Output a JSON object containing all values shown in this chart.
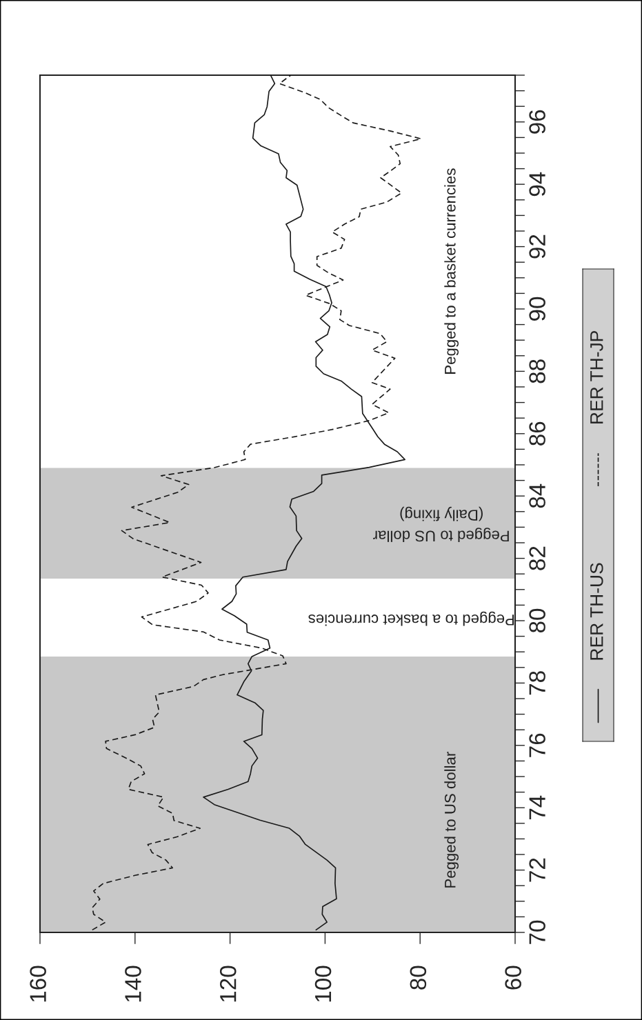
{
  "chart_data": {
    "type": "line",
    "orientation": "horizontal",
    "legend": "right",
    "series": [
      {
        "name": "RER TH-US",
        "color": "#1a1a1a",
        "line_style": "solid",
        "x": [
          70.08,
          70.33,
          70.58,
          70.83,
          71.08,
          71.57,
          72.07,
          72.32,
          72.83,
          73.09,
          73.34,
          73.6,
          74.1,
          74.34,
          74.59,
          74.84,
          75.09,
          75.34,
          75.59,
          75.9,
          76.13,
          76.34,
          76.84,
          77.12,
          77.36,
          77.62,
          78.04,
          78.39,
          78.62,
          78.85,
          79.12,
          79.38,
          79.63,
          79.89,
          80.16,
          80.37,
          80.62,
          80.86,
          81.12,
          81.4,
          81.64,
          81.9,
          82.39,
          82.64,
          82.89,
          83.36,
          83.65,
          83.9,
          84.15,
          84.4,
          84.67,
          84.92,
          85.17,
          85.42,
          85.66,
          85.9,
          86.16,
          86.65,
          87.19,
          87.43,
          87.69,
          87.92,
          88.16,
          88.44,
          88.68,
          88.95,
          89.18,
          89.43,
          89.7,
          89.94,
          90.2,
          90.46,
          90.72,
          90.95,
          91.21,
          91.45,
          91.69,
          92.2,
          92.47,
          92.72,
          92.97,
          93.2,
          93.97,
          94.21,
          94.44,
          94.7,
          94.98,
          95.23,
          95.48,
          95.97,
          96.23,
          96.49,
          96.98,
          97.23,
          97.48
        ],
        "values": [
          101.9,
          99.6,
          100.6,
          100.5,
          97.6,
          97.9,
          97.8,
          99.6,
          104.2,
          105.4,
          107.5,
          113.7,
          123.3,
          125.6,
          120.4,
          116.2,
          115.7,
          115.4,
          114.2,
          115.4,
          117.1,
          113.3,
          113.2,
          113.0,
          114.7,
          118.5,
          117.1,
          115.5,
          116.2,
          115.4,
          111.6,
          112.0,
          116.4,
          116.5,
          119.1,
          121.7,
          119.6,
          118.7,
          118.8,
          117.3,
          108.2,
          107.9,
          106.1,
          104.9,
          106.0,
          106.1,
          107.4,
          107.0,
          102.4,
          100.7,
          100.7,
          90.7,
          83.2,
          84.8,
          87.5,
          88.9,
          90.0,
          92.1,
          92.3,
          94.5,
          96.6,
          100.3,
          101.9,
          101.9,
          100.5,
          102.0,
          99.5,
          99.0,
          101.0,
          99.2,
          98.6,
          99.1,
          99.8,
          103.2,
          106.5,
          106.5,
          107.2,
          107.3,
          107.3,
          108.2,
          105.1,
          104.6,
          105.9,
          108.2,
          108.0,
          109.4,
          109.8,
          113.5,
          115.2,
          114.8,
          112.8,
          112.2,
          111.8,
          110.6,
          111.4
        ]
      },
      {
        "name": "RER TH-JP",
        "color": "#1a1a1a",
        "line_style": "dashed",
        "x": [
          70.08,
          70.33,
          70.58,
          70.79,
          71.07,
          71.33,
          71.57,
          71.83,
          72.07,
          72.32,
          72.56,
          72.82,
          73.07,
          73.34,
          73.59,
          73.82,
          74.06,
          74.34,
          74.59,
          74.84,
          75.09,
          75.34,
          75.61,
          75.9,
          76.13,
          76.34,
          76.58,
          76.84,
          77.07,
          77.62,
          77.89,
          78.11,
          78.27,
          78.41,
          78.62,
          78.87,
          79.12,
          79.38,
          79.64,
          79.87,
          80.12,
          80.62,
          80.89,
          81.14,
          81.4,
          81.87,
          82.63,
          82.89,
          83.15,
          83.64,
          84.12,
          84.37,
          84.65,
          84.91,
          85.17,
          85.42,
          85.66,
          85.9,
          86.13,
          86.42,
          86.67,
          86.94,
          87.43,
          87.64,
          88.42,
          88.68,
          88.95,
          89.21,
          89.47,
          89.66,
          89.94,
          90.17,
          90.44,
          90.93,
          91.16,
          91.4,
          91.68,
          91.95,
          92.23,
          92.47,
          92.72,
          92.96,
          93.2,
          93.43,
          93.72,
          94.21,
          94.42,
          94.66,
          94.94,
          95.21,
          95.46,
          95.71,
          95.97,
          96.23,
          96.46,
          96.72,
          96.93,
          97.23,
          97.5
        ],
        "values": [
          149.0,
          146.2,
          148.7,
          149.0,
          147.4,
          148.7,
          146.7,
          140.0,
          132.1,
          133.5,
          136.4,
          137.3,
          131.1,
          126.3,
          131.8,
          132.1,
          135.2,
          134.0,
          141.4,
          140.8,
          138.0,
          138.8,
          142.1,
          146.0,
          146.2,
          140.0,
          135.9,
          136.3,
          134.9,
          135.7,
          127.7,
          125.6,
          121.5,
          116.1,
          108.2,
          108.9,
          113.3,
          122.2,
          125.6,
          136.3,
          138.6,
          127.0,
          124.6,
          126.0,
          134.3,
          126.1,
          140.4,
          142.8,
          132.7,
          140.7,
          131.0,
          128.7,
          134.5,
          123.3,
          116.8,
          117.1,
          115.7,
          106.5,
          98.6,
          90.7,
          86.6,
          90.1,
          86.3,
          90.1,
          85.3,
          90.1,
          87.0,
          88.4,
          94.9,
          96.9,
          96.6,
          99.0,
          104.1,
          96.2,
          99.3,
          101.7,
          101.7,
          96.6,
          95.9,
          98.5,
          95.9,
          92.8,
          92.5,
          87.0,
          83.9,
          88.3,
          86.3,
          84.2,
          84.6,
          86.3,
          79.8,
          86.3,
          94.1,
          96.9,
          99.3,
          101.0,
          104.1,
          109.6,
          107.2
        ]
      }
    ],
    "xlim": [
      160,
      60
    ],
    "xticks": [
      160,
      140,
      120,
      100,
      80,
      60
    ],
    "ylim": [
      70,
      97.5
    ],
    "yticks": [
      70,
      {
        "value": 70.5,
        "label": null
      },
      {
        "value": 71,
        "label": null
      },
      {
        "value": 71.5,
        "label": null
      },
      72,
      {
        "value": 72.5,
        "label": null
      },
      {
        "value": 73,
        "label": null
      },
      {
        "value": 73.5,
        "label": null
      },
      74,
      {
        "value": 74.5,
        "label": null
      },
      {
        "value": 75,
        "label": null
      },
      {
        "value": 75.5,
        "label": null
      },
      76,
      {
        "value": 76.5,
        "label": null
      },
      {
        "value": 77,
        "label": null
      },
      {
        "value": 77.5,
        "label": null
      },
      78,
      {
        "value": 78.5,
        "label": null
      },
      {
        "value": 79,
        "label": null
      },
      {
        "value": 79.5,
        "label": null
      },
      80,
      {
        "value": 80.5,
        "label": null
      },
      {
        "value": 81,
        "label": null
      },
      {
        "value": 81.5,
        "label": null
      },
      82,
      {
        "value": 82.5,
        "label": null
      },
      {
        "value": 83,
        "label": null
      },
      {
        "value": 83.5,
        "label": null
      },
      84,
      {
        "value": 84.5,
        "label": null
      },
      {
        "value": 85,
        "label": null
      },
      {
        "value": 85.5,
        "label": null
      },
      86,
      {
        "value": 86.5,
        "label": null
      },
      {
        "value": 87,
        "label": null
      },
      {
        "value": 87.5,
        "label": null
      },
      88,
      {
        "value": 88.5,
        "label": null
      },
      {
        "value": 89,
        "label": null
      },
      {
        "value": 89.5,
        "label": null
      },
      90,
      {
        "value": 90.5,
        "label": null
      },
      {
        "value": 91,
        "label": null
      },
      {
        "value": 91.5,
        "label": null
      },
      92,
      {
        "value": 92.5,
        "label": null
      },
      {
        "value": 93,
        "label": null
      },
      {
        "value": 93.5,
        "label": null
      },
      94,
      {
        "value": 94.5,
        "label": null
      },
      {
        "value": 95,
        "label": null
      },
      {
        "value": 95.5,
        "label": null
      },
      96,
      {
        "value": 96.5,
        "label": null
      },
      {
        "value": 97,
        "label": null
      },
      {
        "value": 97.5,
        "label": null
      }
    ],
    "bands": [
      {
        "axis": "y",
        "from": 70,
        "to": 78.85,
        "color": "#c8c8c8"
      },
      {
        "axis": "y",
        "from": 81.35,
        "to": 84.9,
        "color": "#c8c8c8"
      }
    ],
    "annotations": [
      "Pegged to US dollar",
      "Pegged to a basket currencies",
      "Pegged to US dollar\n(Daily fixing)",
      "Pegged to a basket currencies"
    ]
  }
}
